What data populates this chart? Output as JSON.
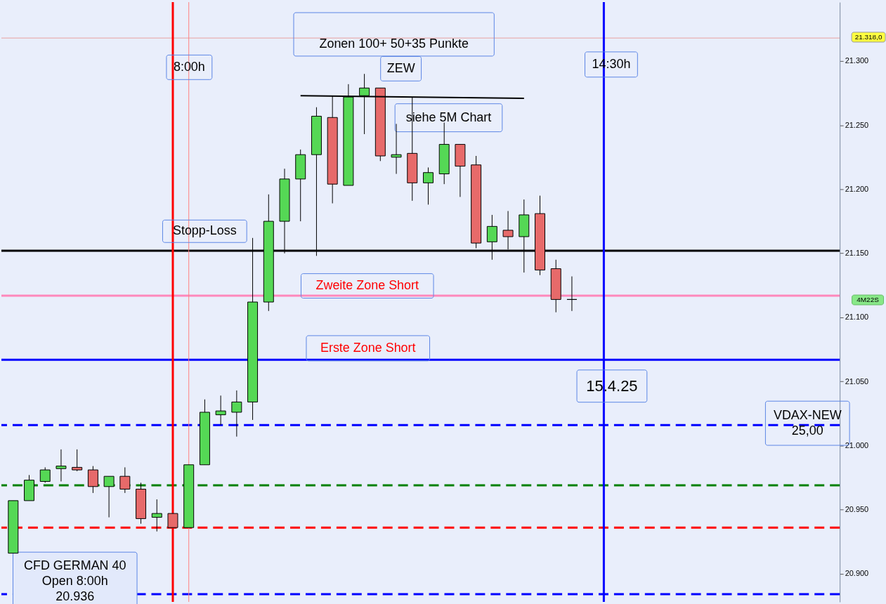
{
  "chart_data": {
    "type": "candlestick",
    "x": [
      5.25,
      5.5,
      5.75,
      6,
      6.25,
      6.5,
      6.75,
      7,
      7.25,
      7.5,
      7.75,
      8,
      8.25,
      8.5,
      8.75,
      9,
      9.25,
      9.5,
      9.75,
      10,
      10.25,
      10.5,
      10.75,
      11,
      11.25,
      11.5,
      11.75,
      12,
      12.25,
      12.5,
      12.75,
      13,
      13.25,
      13.5,
      13.75,
      14
    ],
    "ohlc": [
      [
        20916,
        20957,
        20916,
        20957
      ],
      [
        20957,
        20977,
        20957,
        20973
      ],
      [
        20972,
        20983,
        20971,
        20981
      ],
      [
        20982,
        20997,
        20972,
        20984
      ],
      [
        20983,
        20997,
        20980,
        20981
      ],
      [
        20981,
        20984,
        20963,
        20968
      ],
      [
        20968,
        20976,
        20944,
        20976
      ],
      [
        20976,
        20983,
        20963,
        20966
      ],
      [
        20966,
        20971,
        20939,
        20943
      ],
      [
        20944,
        20958,
        20933,
        20947
      ],
      [
        20947,
        20947,
        20936,
        20936
      ],
      [
        20936,
        20985,
        20936,
        20985
      ],
      [
        20985,
        21036,
        20985,
        21026
      ],
      [
        21024,
        21039,
        21016,
        21027
      ],
      [
        21026,
        21043,
        21007,
        21034
      ],
      [
        21034,
        21162,
        21020,
        21112
      ],
      [
        21112,
        21196,
        21105,
        21175
      ],
      [
        21175,
        21216,
        21150,
        21208
      ],
      [
        21208,
        21231,
        21175,
        21227
      ],
      [
        21227,
        21264,
        21148,
        21257
      ],
      [
        21256,
        21273,
        21189,
        21204
      ],
      [
        21203,
        21282,
        21203,
        21272
      ],
      [
        21273,
        21290,
        21243,
        21279
      ],
      [
        21279,
        21279,
        21222,
        21226
      ],
      [
        21225,
        21251,
        21212,
        21227
      ],
      [
        21228,
        21272,
        21191,
        21205
      ],
      [
        21205,
        21217,
        21188,
        21213
      ],
      [
        21212,
        21252,
        21204,
        21235
      ],
      [
        21235,
        21235,
        21194,
        21218
      ],
      [
        21219,
        21226,
        21154,
        21158
      ],
      [
        21159,
        21180,
        21145,
        21171
      ],
      [
        21168,
        21183,
        21153,
        21163
      ],
      [
        21163,
        21192,
        21135,
        21180
      ],
      [
        21181,
        21195,
        21133,
        21137
      ],
      [
        21138,
        21145,
        21104,
        21114
      ],
      [
        21114,
        21132,
        21105,
        21114
      ]
    ],
    "series": [
      {
        "type": "line",
        "x": [
          9.75,
          13.25
        ],
        "values": [
          21273,
          21271
        ],
        "color": "#000000"
      }
    ],
    "xlim": [
      5.12,
      18.14
    ],
    "ylim": [
      20878,
      21346
    ],
    "yticks": [
      {
        "value": 20900,
        "label": "20.900"
      },
      {
        "value": 20950,
        "label": "20.950"
      },
      {
        "value": 21000,
        "label": "21.000"
      },
      {
        "value": 21050,
        "label": "21.050"
      },
      {
        "value": 21100,
        "label": "21.100"
      },
      {
        "value": 21150,
        "label": "21.150"
      },
      {
        "value": 21200,
        "label": "21.200"
      },
      {
        "value": 21250,
        "label": "21.250"
      },
      {
        "value": 21300,
        "label": "21.300"
      }
    ],
    "tick_labels": "y",
    "ref_lines": [
      {
        "axis": "y",
        "value": 21318,
        "label": "21.318,0",
        "color": "#e8a0a0"
      },
      {
        "axis": "y",
        "value": 21152,
        "label": "Stopp-Loss",
        "color": "#000000"
      },
      {
        "axis": "y",
        "value": 21117,
        "label": "Zweite Zone Short",
        "color": "#ff88bb"
      },
      {
        "axis": "y",
        "value": 21067,
        "label": "Erste Zone Short",
        "color": "#0000ff"
      },
      {
        "axis": "y",
        "value": 21016,
        "color": "#0000ff",
        "line_style": "dashed"
      },
      {
        "axis": "y",
        "value": 20884,
        "color": "#0000ff",
        "line_style": "dashed"
      },
      {
        "axis": "y",
        "value": 20969,
        "color": "#008000",
        "line_style": "dashed"
      },
      {
        "axis": "y",
        "value": 20936,
        "color": "#ff0000",
        "line_style": "dashed"
      },
      {
        "axis": "x",
        "value": 7.75,
        "color": "#ff0000"
      },
      {
        "axis": "x",
        "value": 8,
        "label": "8:00h",
        "color": "#ff8080"
      },
      {
        "axis": "x",
        "value": 14.5,
        "label": "14:30h",
        "color": "#0000ff"
      }
    ],
    "annotations": [
      "Zonen 100+ 50+35 Punkte",
      "ZEW",
      "siehe 5M Chart",
      "15.4.25",
      "VDAX-NEW\n25,00",
      "CFD GERMAN 40\nOpen 8:00h\n20.936",
      "4M22S"
    ]
  }
}
